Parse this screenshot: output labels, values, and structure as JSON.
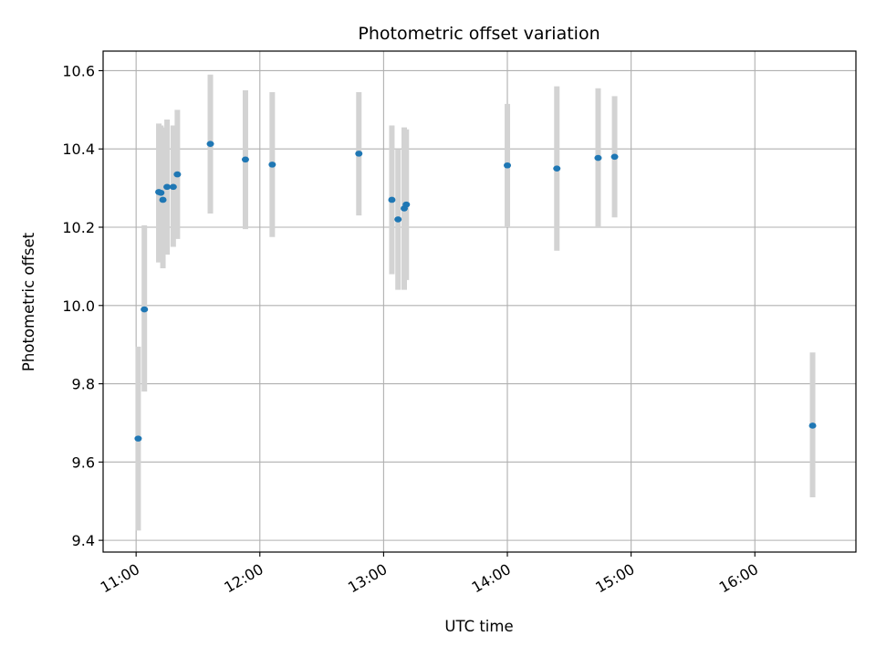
{
  "chart_data": {
    "type": "scatter",
    "title": "Photometric offset variation",
    "xlabel": "UTC time",
    "ylabel": "Photometric offset",
    "x_ticks": [
      "11:00",
      "12:00",
      "13:00",
      "14:00",
      "15:00",
      "16:00"
    ],
    "y_ticks": [
      "9.4",
      "9.6",
      "9.8",
      "10.0",
      "10.2",
      "10.4",
      "10.6"
    ],
    "xlim": [
      "10:44",
      "16:49"
    ],
    "ylim": [
      9.37,
      10.65
    ],
    "grid": true,
    "marker_color": "#1f77b4",
    "errorbar_color": "#d3d3d3",
    "points": [
      {
        "x": "11:01",
        "y": 9.66,
        "yerr_low": 9.425,
        "yerr_high": 9.895
      },
      {
        "x": "11:04",
        "y": 9.99,
        "yerr_low": 9.78,
        "yerr_high": 10.205
      },
      {
        "x": "11:11",
        "y": 10.29,
        "yerr_low": 10.11,
        "yerr_high": 10.465
      },
      {
        "x": "11:12",
        "y": 10.288,
        "yerr_low": 10.115,
        "yerr_high": 10.46
      },
      {
        "x": "11:13",
        "y": 10.27,
        "yerr_low": 10.095,
        "yerr_high": 10.455
      },
      {
        "x": "11:15",
        "y": 10.303,
        "yerr_low": 10.13,
        "yerr_high": 10.475
      },
      {
        "x": "11:18",
        "y": 10.303,
        "yerr_low": 10.15,
        "yerr_high": 10.46
      },
      {
        "x": "11:20",
        "y": 10.335,
        "yerr_low": 10.17,
        "yerr_high": 10.5
      },
      {
        "x": "11:36",
        "y": 10.413,
        "yerr_low": 10.235,
        "yerr_high": 10.59
      },
      {
        "x": "11:53",
        "y": 10.373,
        "yerr_low": 10.195,
        "yerr_high": 10.55
      },
      {
        "x": "12:06",
        "y": 10.36,
        "yerr_low": 10.175,
        "yerr_high": 10.545
      },
      {
        "x": "12:48",
        "y": 10.388,
        "yerr_low": 10.23,
        "yerr_high": 10.545
      },
      {
        "x": "13:04",
        "y": 10.27,
        "yerr_low": 10.08,
        "yerr_high": 10.46
      },
      {
        "x": "13:07",
        "y": 10.22,
        "yerr_low": 10.04,
        "yerr_high": 10.4
      },
      {
        "x": "13:10",
        "y": 10.248,
        "yerr_low": 10.04,
        "yerr_high": 10.455
      },
      {
        "x": "13:11",
        "y": 10.258,
        "yerr_low": 10.065,
        "yerr_high": 10.45
      },
      {
        "x": "14:00",
        "y": 10.358,
        "yerr_low": 10.2,
        "yerr_high": 10.515
      },
      {
        "x": "14:24",
        "y": 10.35,
        "yerr_low": 10.14,
        "yerr_high": 10.56
      },
      {
        "x": "14:44",
        "y": 10.377,
        "yerr_low": 10.2,
        "yerr_high": 10.555
      },
      {
        "x": "14:52",
        "y": 10.38,
        "yerr_low": 10.225,
        "yerr_high": 10.535
      },
      {
        "x": "16:28",
        "y": 9.693,
        "yerr_low": 9.51,
        "yerr_high": 9.88
      }
    ]
  }
}
